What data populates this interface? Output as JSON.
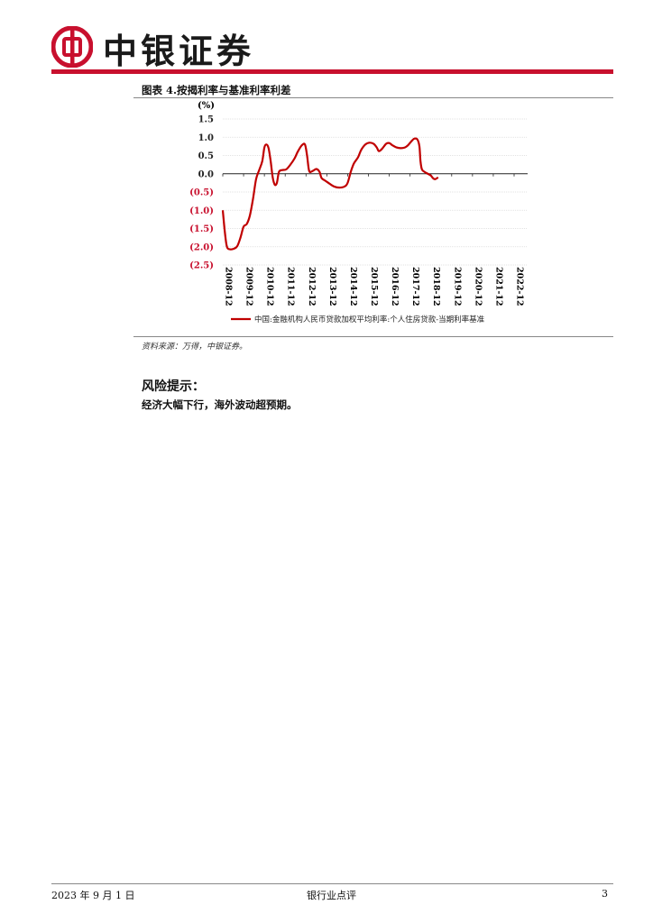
{
  "header": {
    "brand": "中银证券",
    "brand_color": "#c8102e"
  },
  "figure": {
    "title": "图表 4.按揭利率与基准利率利差",
    "source": "资料来源：万得，中银证券。"
  },
  "chart_data": {
    "type": "line",
    "unit": "(%)",
    "ylim": [
      -2.5,
      1.5
    ],
    "yticks": [
      {
        "v": 1.5,
        "label": "1.5"
      },
      {
        "v": 1.0,
        "label": "1.0"
      },
      {
        "v": 0.5,
        "label": "0.5"
      },
      {
        "v": 0.0,
        "label": "0.0"
      },
      {
        "v": -0.5,
        "label": "(0.5)"
      },
      {
        "v": -1.0,
        "label": "(1.0)"
      },
      {
        "v": -1.5,
        "label": "(1.5)"
      },
      {
        "v": -2.0,
        "label": "(2.0)"
      },
      {
        "v": -2.5,
        "label": "(2.5)"
      }
    ],
    "xticks": [
      "2008-12",
      "2009-12",
      "2010-12",
      "2011-12",
      "2012-12",
      "2013-12",
      "2014-12",
      "2015-12",
      "2016-12",
      "2017-12",
      "2018-12",
      "2019-12",
      "2020-12",
      "2021-12",
      "2022-12"
    ],
    "xlim": [
      2008.95,
      2023.6
    ],
    "negative_color": "#c8102e",
    "series": [
      {
        "name": "中国:金融机构人民币贷款加权平均利率:个人住房贷款-当期利率基准",
        "color": "#c00000",
        "points": [
          [
            2008.95,
            -1.0
          ],
          [
            2009.05,
            -1.6
          ],
          [
            2009.15,
            -2.0
          ],
          [
            2009.3,
            -2.07
          ],
          [
            2009.5,
            -2.05
          ],
          [
            2009.65,
            -1.98
          ],
          [
            2009.8,
            -1.75
          ],
          [
            2009.95,
            -1.45
          ],
          [
            2010.1,
            -1.38
          ],
          [
            2010.25,
            -1.15
          ],
          [
            2010.4,
            -0.7
          ],
          [
            2010.55,
            -0.15
          ],
          [
            2010.7,
            0.1
          ],
          [
            2010.85,
            0.35
          ],
          [
            2010.95,
            0.72
          ],
          [
            2011.05,
            0.8
          ],
          [
            2011.15,
            0.7
          ],
          [
            2011.25,
            0.35
          ],
          [
            2011.35,
            -0.1
          ],
          [
            2011.45,
            -0.3
          ],
          [
            2011.55,
            -0.25
          ],
          [
            2011.65,
            0.05
          ],
          [
            2011.8,
            0.1
          ],
          [
            2012.0,
            0.12
          ],
          [
            2012.2,
            0.25
          ],
          [
            2012.4,
            0.42
          ],
          [
            2012.55,
            0.6
          ],
          [
            2012.75,
            0.78
          ],
          [
            2012.9,
            0.8
          ],
          [
            2013.0,
            0.5
          ],
          [
            2013.1,
            0.08
          ],
          [
            2013.25,
            0.07
          ],
          [
            2013.45,
            0.13
          ],
          [
            2013.6,
            0.05
          ],
          [
            2013.7,
            -0.12
          ],
          [
            2013.9,
            -0.2
          ],
          [
            2014.1,
            -0.28
          ],
          [
            2014.3,
            -0.35
          ],
          [
            2014.55,
            -0.38
          ],
          [
            2014.8,
            -0.35
          ],
          [
            2014.95,
            -0.25
          ],
          [
            2015.1,
            0.05
          ],
          [
            2015.25,
            0.28
          ],
          [
            2015.45,
            0.45
          ],
          [
            2015.6,
            0.65
          ],
          [
            2015.8,
            0.8
          ],
          [
            2016.0,
            0.85
          ],
          [
            2016.2,
            0.82
          ],
          [
            2016.35,
            0.72
          ],
          [
            2016.45,
            0.62
          ],
          [
            2016.6,
            0.68
          ],
          [
            2016.8,
            0.82
          ],
          [
            2016.95,
            0.84
          ],
          [
            2017.1,
            0.78
          ],
          [
            2017.3,
            0.72
          ],
          [
            2017.5,
            0.7
          ],
          [
            2017.7,
            0.72
          ],
          [
            2017.85,
            0.78
          ],
          [
            2018.0,
            0.88
          ],
          [
            2018.15,
            0.96
          ],
          [
            2018.3,
            0.94
          ],
          [
            2018.4,
            0.75
          ],
          [
            2018.45,
            0.35
          ],
          [
            2018.52,
            0.12
          ],
          [
            2018.65,
            0.05
          ],
          [
            2018.8,
            0.0
          ],
          [
            2018.95,
            -0.05
          ],
          [
            2019.05,
            -0.12
          ],
          [
            2019.15,
            -0.15
          ],
          [
            2019.3,
            -0.1
          ]
        ]
      }
    ]
  },
  "risk": {
    "title": "风险提示：",
    "text": "经济大幅下行，海外波动超预期。"
  },
  "footer": {
    "date": "2023 年 9 月 1 日",
    "title": "银行业点评",
    "page": "3"
  }
}
